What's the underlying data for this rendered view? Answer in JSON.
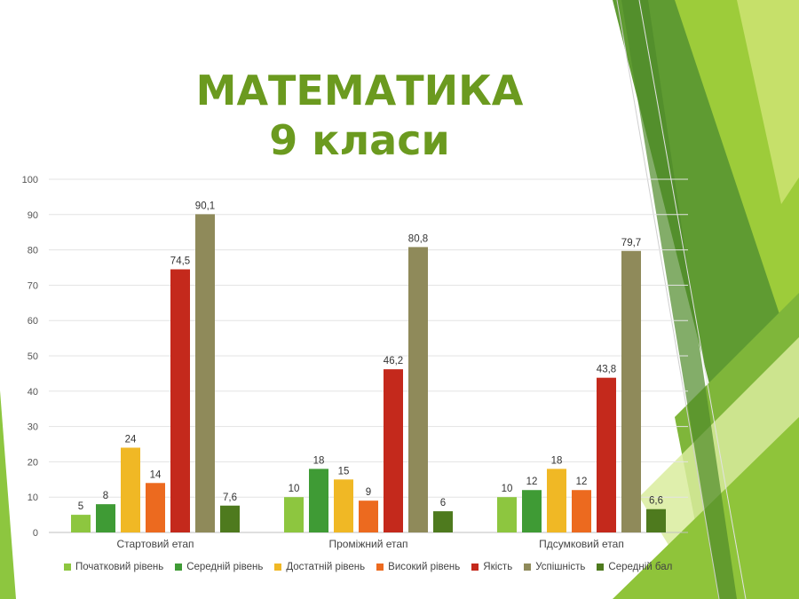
{
  "slide": {
    "title_line1": "МАТЕМАТИКА",
    "title_line2": "9 класи",
    "accent_color": "#6b9a1f"
  },
  "chart_data": {
    "type": "bar",
    "title": "",
    "xlabel": "",
    "ylabel": "",
    "ylim": [
      0,
      100
    ],
    "yticks": [
      0,
      10,
      20,
      30,
      40,
      50,
      60,
      70,
      80,
      90,
      100
    ],
    "grid": true,
    "legend_position": "bottom",
    "categories": [
      "Стартовий етап",
      "Проміжний етап",
      "Пдсумковий етап"
    ],
    "series": [
      {
        "name": "Початковий рівень",
        "color": "#8dc63f",
        "values": [
          5,
          10,
          10
        ],
        "labels": [
          "5",
          "10",
          "10"
        ]
      },
      {
        "name": "Середній рівень",
        "color": "#3f9b35",
        "values": [
          8,
          18,
          12
        ],
        "labels": [
          "8",
          "18",
          "12"
        ]
      },
      {
        "name": "Достатній рівень",
        "color": "#f0b825",
        "values": [
          24,
          15,
          18
        ],
        "labels": [
          "24",
          "15",
          "18"
        ]
      },
      {
        "name": "Високий рівень",
        "color": "#ec6a1f",
        "values": [
          14,
          9,
          12
        ],
        "labels": [
          "14",
          "9",
          "12"
        ]
      },
      {
        "name": "Якість",
        "color": "#c4291c",
        "values": [
          74.5,
          46.2,
          43.8
        ],
        "labels": [
          "74,5",
          "46,2",
          "43,8"
        ]
      },
      {
        "name": "Успішність",
        "color": "#8f8a5a",
        "values": [
          90.1,
          80.8,
          79.7
        ],
        "labels": [
          "90,1",
          "80,8",
          "79,7"
        ]
      },
      {
        "name": "Середній бал",
        "color": "#4e7a1e",
        "values": [
          7.6,
          6,
          6.6
        ],
        "labels": [
          "7,6",
          "6",
          "6,6"
        ]
      }
    ]
  }
}
